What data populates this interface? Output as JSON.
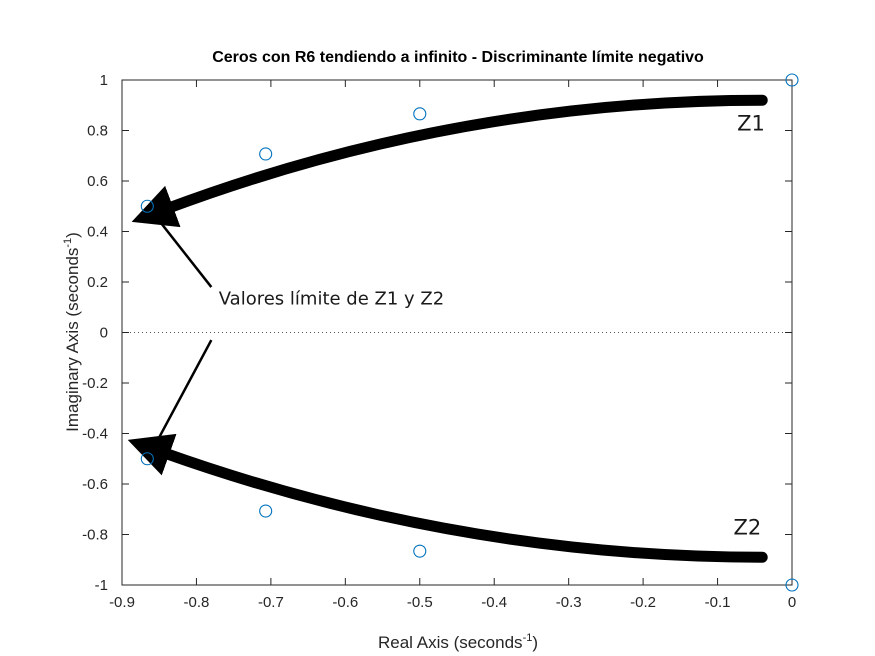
{
  "chart_data": {
    "type": "scatter",
    "title": "Ceros con R6 tendiendo a infinito - Discriminante límite negativo",
    "xlabel": "Real Axis (seconds",
    "xlabel_sup": "-1",
    "xlabel_close": ")",
    "ylabel": "Imaginary Axis (seconds",
    "ylabel_sup": "-1",
    "ylabel_close": ")",
    "xlim": [
      -0.9,
      0
    ],
    "ylim": [
      -1,
      1
    ],
    "x_ticks": [
      -0.9,
      -0.8,
      -0.7,
      -0.6,
      -0.5,
      -0.4,
      -0.3,
      -0.2,
      -0.1,
      0
    ],
    "x_tick_labels": [
      "-0.9",
      "-0.8",
      "-0.7",
      "-0.6",
      "-0.5",
      "-0.4",
      "-0.3",
      "-0.2",
      "-0.1",
      "0"
    ],
    "y_ticks": [
      -1,
      -0.8,
      -0.6,
      -0.4,
      -0.2,
      0,
      0.2,
      0.4,
      0.6,
      0.8,
      1
    ],
    "y_tick_labels": [
      "-1",
      "-0.8",
      "-0.6",
      "-0.4",
      "-0.2",
      "0",
      "0.2",
      "0.4",
      "0.6",
      "0.8",
      "1"
    ],
    "grid": false,
    "marker": "circle",
    "marker_color": "#0072BD",
    "points": [
      {
        "x": 0,
        "y": 1
      },
      {
        "x": -0.5,
        "y": 0.866
      },
      {
        "x": -0.707,
        "y": 0.707
      },
      {
        "x": -0.866,
        "y": 0.5
      },
      {
        "x": -0.866,
        "y": -0.5
      },
      {
        "x": -0.707,
        "y": -0.707
      },
      {
        "x": -0.5,
        "y": -0.866
      },
      {
        "x": 0,
        "y": -1
      }
    ],
    "zero_line": {
      "y": 0,
      "style": "dotted"
    },
    "annotations": {
      "z1_label": "Z1",
      "z2_label": "Z2",
      "limit_text": "Valores límite de Z1 y Z2",
      "arrow_z1": {
        "from": [
          -0.04,
          0.92
        ],
        "control": [
          -0.45,
          0.92
        ],
        "to": [
          -0.84,
          0.49
        ]
      },
      "arrow_z2": {
        "from": [
          -0.04,
          -0.89
        ],
        "control": [
          -0.45,
          -0.89
        ],
        "to": [
          -0.845,
          -0.475
        ]
      },
      "z1_label_pos": [
        -0.055,
        0.8
      ],
      "z2_label_pos": [
        -0.06,
        -0.8
      ],
      "limit_text_pos": [
        -0.77,
        0.11
      ],
      "leader_top": {
        "from": [
          -0.86,
          0.48
        ],
        "to": [
          -0.78,
          0.18
        ]
      },
      "leader_bottom": {
        "from": [
          -0.86,
          -0.47
        ],
        "to": [
          -0.78,
          -0.03
        ]
      }
    }
  }
}
